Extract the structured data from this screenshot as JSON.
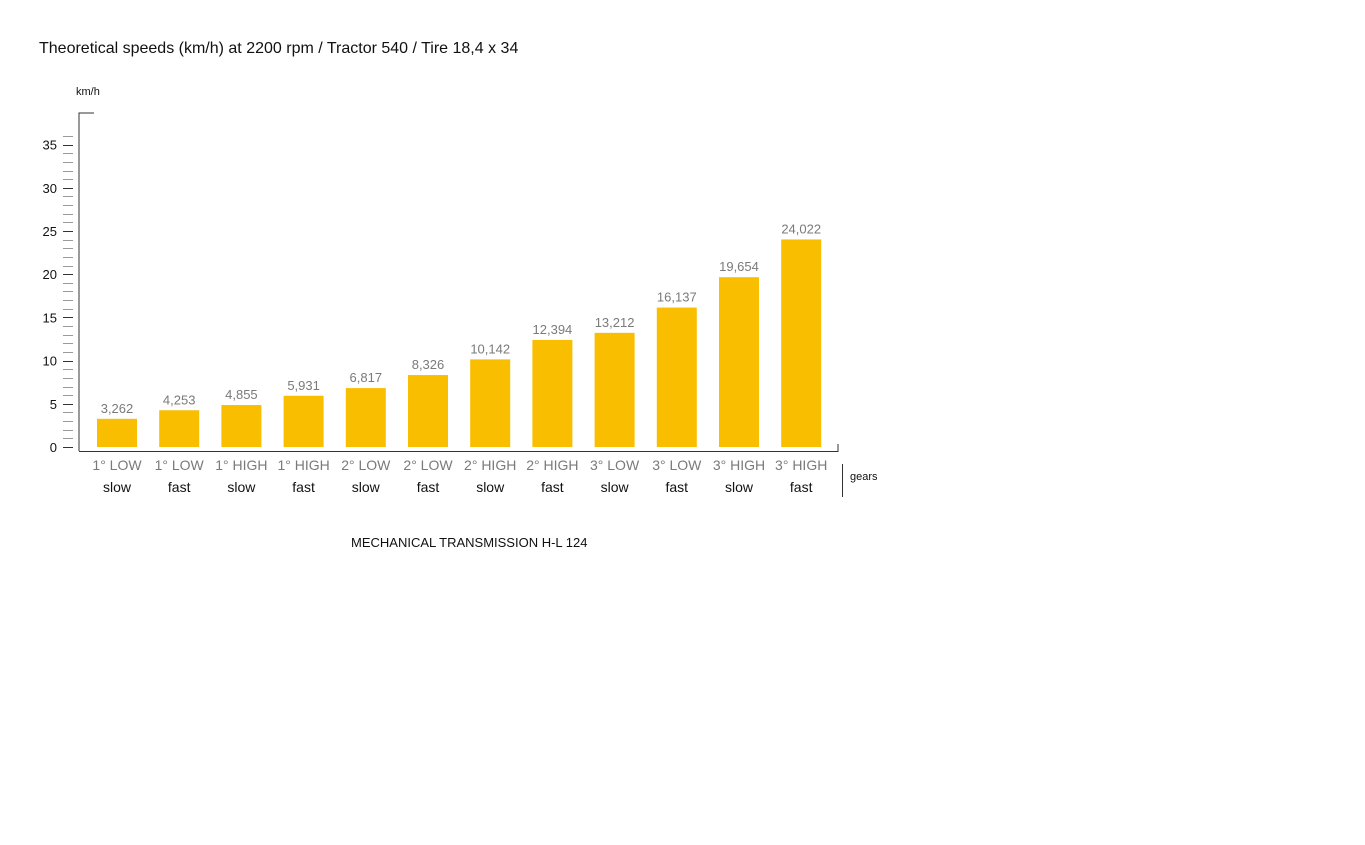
{
  "chart_data": {
    "type": "bar",
    "title": "Theoretical speeds (km/h) at 2200 rpm / Tractor 540 / Tire 18,4 x 34",
    "ylabel": "km/h",
    "xlabel": "gears",
    "subtitle": "MECHANICAL TRANSMISSION H-L 124",
    "ylim": [
      0,
      38
    ],
    "yticks": [
      0,
      5,
      10,
      15,
      20,
      25,
      30,
      35
    ],
    "grid": false,
    "legend": "none",
    "bar_color": "#F9BE00",
    "categories": [
      {
        "gear": "1° LOW",
        "speed": "slow"
      },
      {
        "gear": "1° LOW",
        "speed": "fast"
      },
      {
        "gear": "1° HIGH",
        "speed": "slow"
      },
      {
        "gear": "1° HIGH",
        "speed": "fast"
      },
      {
        "gear": "2° LOW",
        "speed": "slow"
      },
      {
        "gear": "2° LOW",
        "speed": "fast"
      },
      {
        "gear": "2° HIGH",
        "speed": "slow"
      },
      {
        "gear": "2° HIGH",
        "speed": "fast"
      },
      {
        "gear": "3° LOW",
        "speed": "slow"
      },
      {
        "gear": "3° LOW",
        "speed": "fast"
      },
      {
        "gear": "3° HIGH",
        "speed": "slow"
      },
      {
        "gear": "3° HIGH",
        "speed": "fast"
      }
    ],
    "values": [
      3.262,
      4.253,
      4.855,
      5.931,
      6.817,
      8.326,
      10.142,
      12.394,
      13.212,
      16.137,
      19.654,
      24.022
    ],
    "value_labels": [
      "3,262",
      "4,253",
      "4,855",
      "5,931",
      "6,817",
      "8,326",
      "10,142",
      "12,394",
      "13,212",
      "16,137",
      "19,654",
      "24,022"
    ]
  }
}
